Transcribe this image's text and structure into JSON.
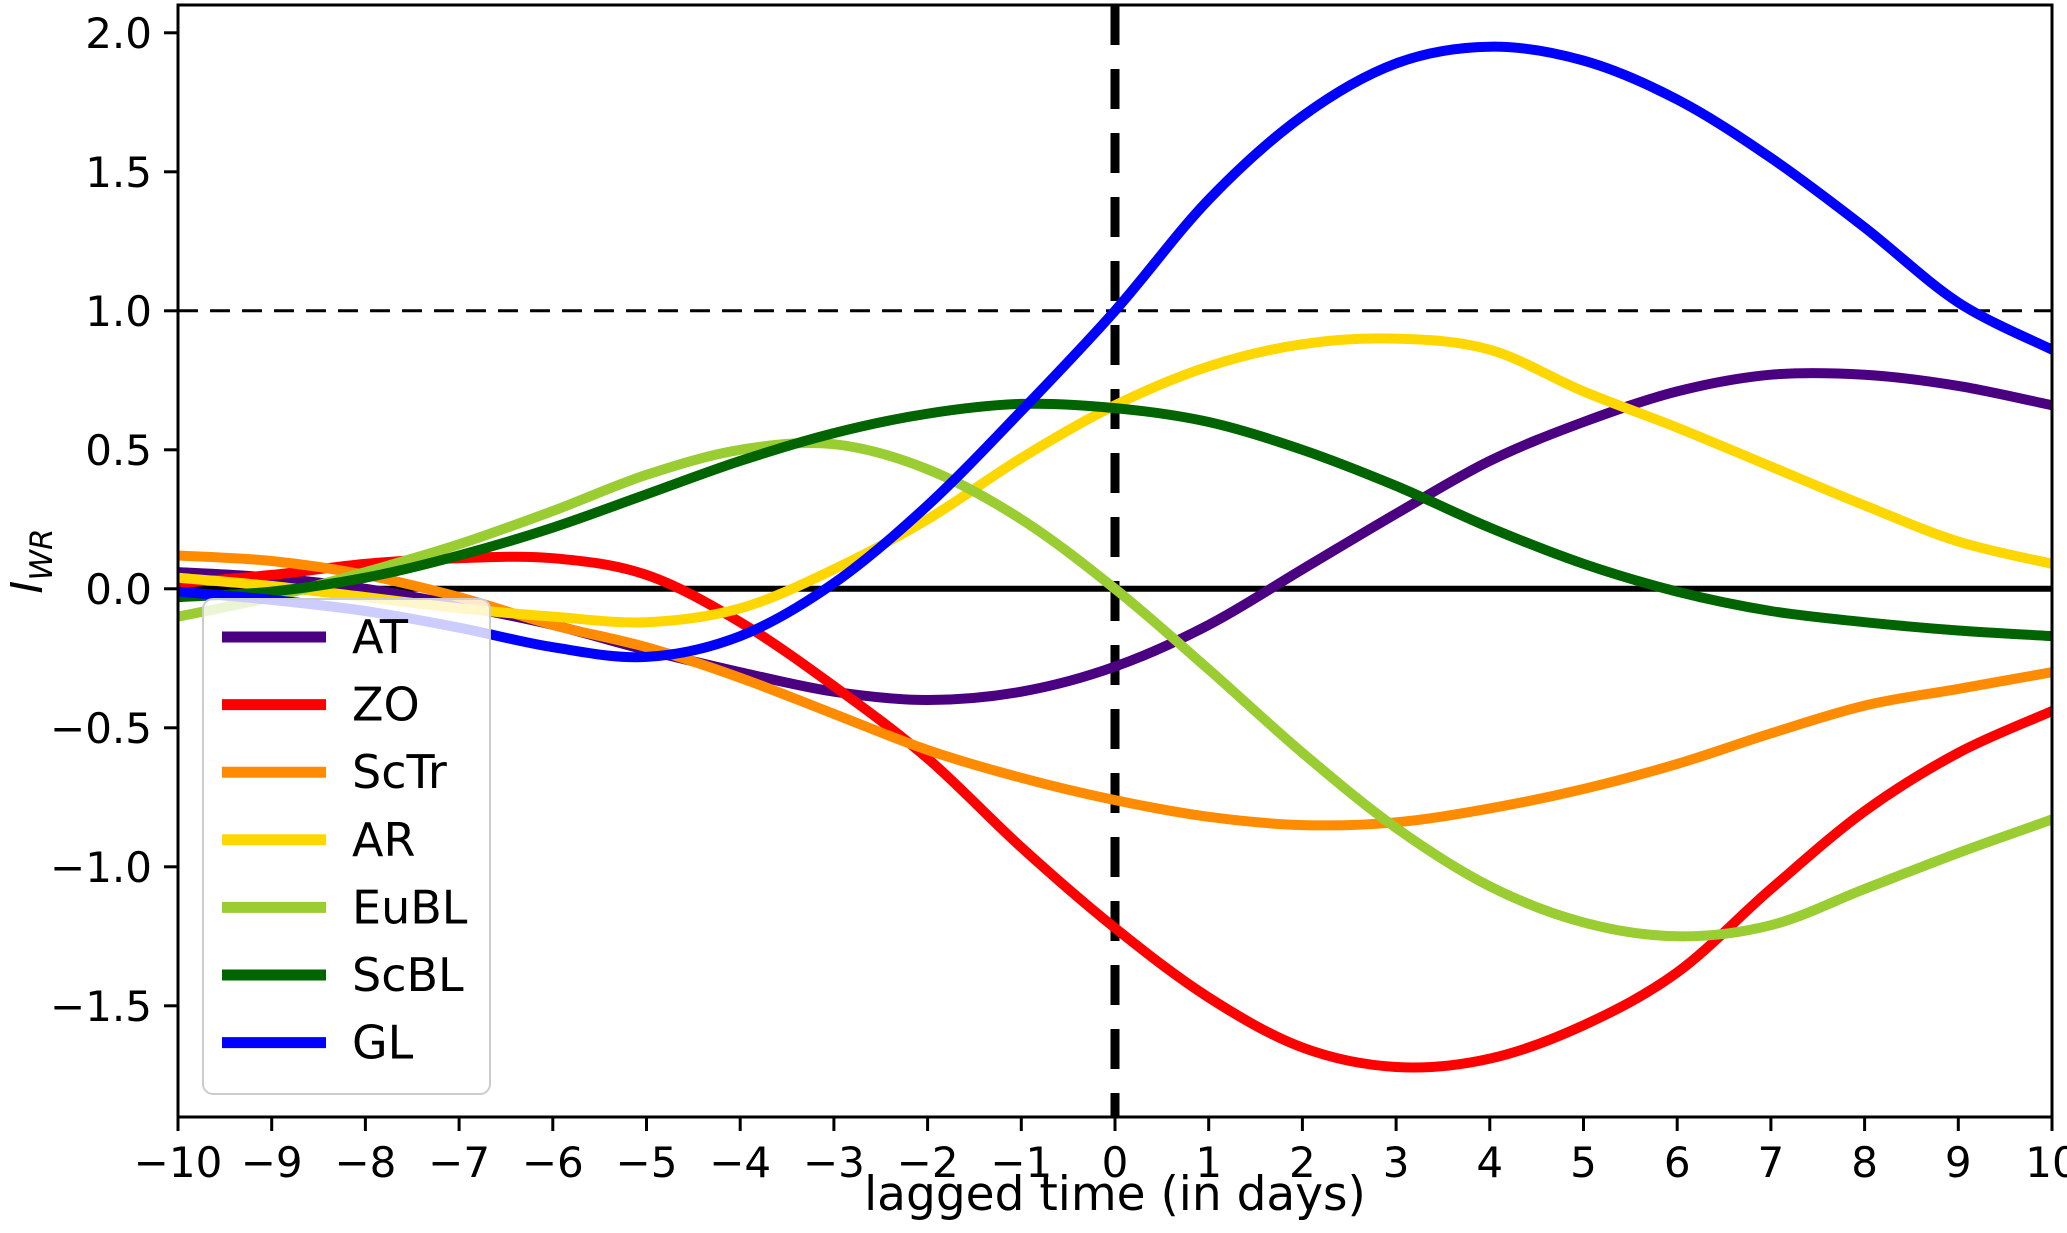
{
  "figure": {
    "xlabel": "lagged time (in days)",
    "ylabel_base": "I",
    "ylabel_sub": "WR",
    "background": "#ffffff",
    "axis_color": "#000000"
  },
  "chart_data": {
    "type": "line",
    "title": "",
    "xlabel": "lagged time (in days)",
    "ylabel": "I_WR",
    "xlim": [
      -10,
      10
    ],
    "ylim": [
      -1.9,
      2.1
    ],
    "grid": false,
    "legend_position": "lower left",
    "x_ticks": [
      -10,
      -9,
      -8,
      -7,
      -6,
      -5,
      -4,
      -3,
      -2,
      -1,
      0,
      1,
      2,
      3,
      4,
      5,
      6,
      7,
      8,
      9,
      10
    ],
    "x_tick_labels": [
      "−10",
      "−9",
      "−8",
      "−7",
      "−6",
      "−5",
      "−4",
      "−3",
      "−2",
      "−1",
      "0",
      "1",
      "2",
      "3",
      "4",
      "5",
      "6",
      "7",
      "8",
      "9",
      "10"
    ],
    "y_ticks": [
      2.0,
      1.5,
      1.0,
      0.5,
      0.0,
      -0.5,
      -1.0,
      -1.5
    ],
    "y_tick_labels": [
      "2.0",
      "1.5",
      "1.0",
      "0.5",
      "0.0",
      "−0.5",
      "−1.0",
      "−1.5"
    ],
    "reference_lines": {
      "horizontal_solid_y": 0.0,
      "horizontal_dashed_y": 1.0,
      "vertical_dashed_x": 0.0,
      "color": "#000000"
    },
    "x": [
      -10,
      -9,
      -8,
      -7,
      -6,
      -5,
      -4,
      -3,
      -2,
      -1,
      0,
      1,
      2,
      3,
      4,
      5,
      6,
      7,
      8,
      9,
      10
    ],
    "series": [
      {
        "name": "AT",
        "color": "#4B0082",
        "values": [
          0.06,
          0.04,
          0.0,
          -0.06,
          -0.13,
          -0.22,
          -0.3,
          -0.37,
          -0.4,
          -0.37,
          -0.28,
          -0.13,
          0.07,
          0.27,
          0.46,
          0.6,
          0.71,
          0.77,
          0.77,
          0.73,
          0.66
        ]
      },
      {
        "name": "ZO",
        "color": "#FF0000",
        "values": [
          0.02,
          0.05,
          0.09,
          0.11,
          0.11,
          0.05,
          -0.12,
          -0.35,
          -0.61,
          -0.93,
          -1.22,
          -1.47,
          -1.65,
          -1.72,
          -1.69,
          -1.57,
          -1.38,
          -1.08,
          -0.8,
          -0.59,
          -0.44
        ]
      },
      {
        "name": "ScTr",
        "color": "#FF8C00",
        "values": [
          0.12,
          0.1,
          0.05,
          -0.03,
          -0.13,
          -0.21,
          -0.32,
          -0.45,
          -0.58,
          -0.68,
          -0.76,
          -0.82,
          -0.85,
          -0.84,
          -0.79,
          -0.72,
          -0.63,
          -0.52,
          -0.42,
          -0.36,
          -0.3
        ]
      },
      {
        "name": "AR",
        "color": "#FFD700",
        "values": [
          0.04,
          0.01,
          -0.03,
          -0.07,
          -0.1,
          -0.12,
          -0.07,
          0.07,
          0.25,
          0.47,
          0.66,
          0.8,
          0.88,
          0.9,
          0.86,
          0.71,
          0.58,
          0.44,
          0.3,
          0.17,
          0.09
        ]
      },
      {
        "name": "EuBL",
        "color": "#9ACD32",
        "values": [
          -0.1,
          -0.03,
          0.06,
          0.16,
          0.28,
          0.41,
          0.5,
          0.52,
          0.43,
          0.25,
          0.0,
          -0.29,
          -0.59,
          -0.86,
          -1.07,
          -1.2,
          -1.25,
          -1.21,
          -1.08,
          -0.95,
          -0.83
        ]
      },
      {
        "name": "ScBL",
        "color": "#006400",
        "values": [
          -0.03,
          -0.01,
          0.04,
          0.12,
          0.22,
          0.34,
          0.46,
          0.56,
          0.63,
          0.665,
          0.65,
          0.6,
          0.5,
          0.37,
          0.22,
          0.09,
          -0.01,
          -0.08,
          -0.12,
          -0.15,
          -0.17
        ]
      },
      {
        "name": "GL",
        "color": "#0000FF",
        "values": [
          -0.01,
          -0.04,
          -0.08,
          -0.14,
          -0.21,
          -0.245,
          -0.17,
          0.02,
          0.3,
          0.64,
          1.0,
          1.4,
          1.7,
          1.89,
          1.95,
          1.9,
          1.76,
          1.55,
          1.3,
          1.03,
          0.86
        ]
      }
    ],
    "legend_entries": [
      "AT",
      "ZO",
      "ScTr",
      "AR",
      "EuBL",
      "ScBL",
      "GL"
    ]
  },
  "style": {
    "curve_width": 10,
    "zero_line_width": 6,
    "dashed_h_width": 3,
    "dashed_v_width": 9,
    "spine_width": 3,
    "legend_bg": "rgba(255,255,255,0.8)",
    "legend_border": "#cccccc"
  }
}
